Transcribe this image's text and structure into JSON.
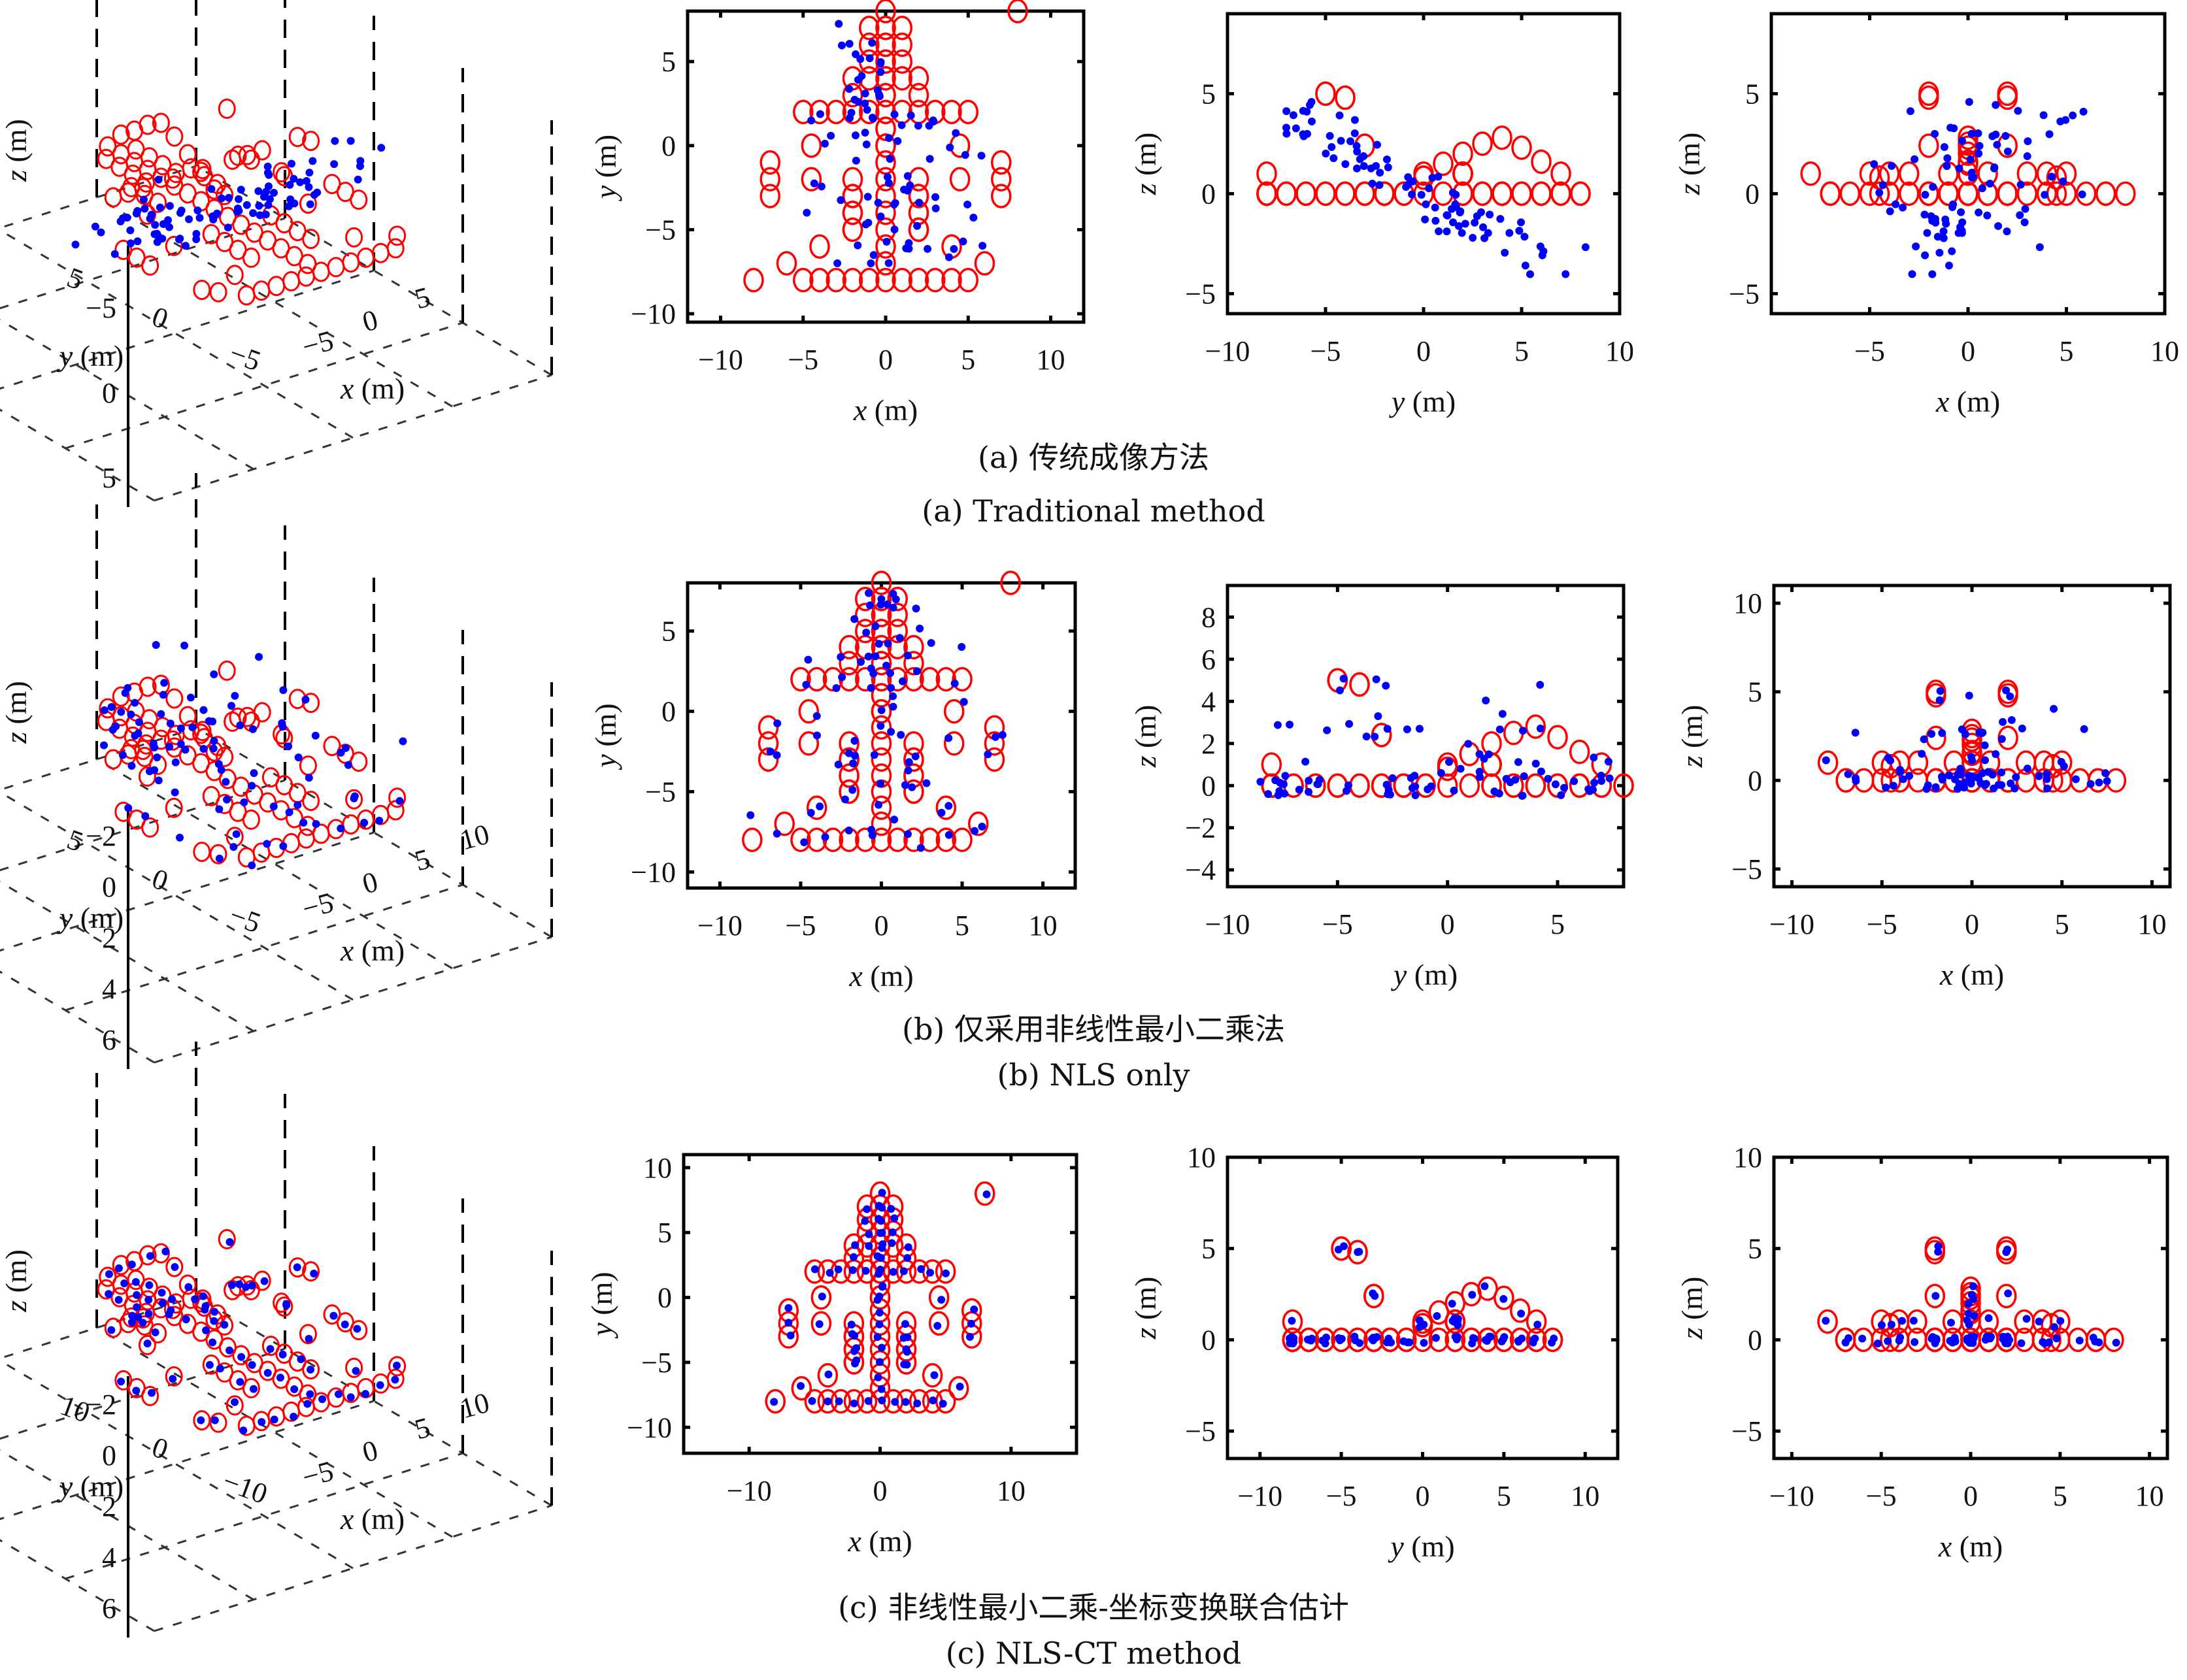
{
  "figure": {
    "markers": {
      "truth": {
        "color": "#ff0000",
        "shape": "circle-open"
      },
      "estimate": {
        "color": "#0000ff",
        "shape": "asterisk"
      }
    },
    "rows": [
      {
        "id": "a",
        "caption_cn": "(a) 传统成像方法",
        "caption_en": "(a) Traditional method"
      },
      {
        "id": "b",
        "caption_cn": "(b) 仅采用非线性最小二乘法",
        "caption_en": "(b) NLS only"
      },
      {
        "id": "c",
        "caption_cn": "(c) 非线性最小二乘-坐标变换联合估计",
        "caption_en": "(c) NLS-CT method"
      }
    ]
  },
  "chart_data": [
    {
      "id": "a-3d",
      "type": "scatter",
      "projection": "3d",
      "xlabel": "x (m)",
      "ylabel": "y (m)",
      "zlabel": "z (m)",
      "xticks": [
        "-5",
        "0",
        "5"
      ],
      "yticks": [
        "5",
        "0",
        "-5"
      ],
      "zticks": [
        "5",
        "0",
        "-5"
      ],
      "grid": true,
      "series": [
        "truth",
        "estimate"
      ],
      "estimate_style": "scattered"
    },
    {
      "id": "a-xy",
      "type": "scatter",
      "xlabel": "x (m)",
      "ylabel": "y (m)",
      "xlim": [
        -12,
        12
      ],
      "ylim": [
        -10.5,
        8
      ],
      "xticks": [
        -10,
        -5,
        0,
        5,
        10
      ],
      "yticks": [
        -10,
        -5,
        0,
        5
      ],
      "view": "xy",
      "estimate_key": "a"
    },
    {
      "id": "a-yz",
      "type": "scatter",
      "xlabel": "y (m)",
      "ylabel": "z (m)",
      "xlim": [
        -10,
        10
      ],
      "ylim": [
        -6,
        9
      ],
      "xticks": [
        -10,
        -5,
        0,
        5,
        10
      ],
      "yticks": [
        -5,
        0,
        5
      ],
      "view": "yz",
      "estimate_key": "a"
    },
    {
      "id": "a-xz",
      "type": "scatter",
      "xlabel": "x (m)",
      "ylabel": "z (m)",
      "xlim": [
        -10,
        10
      ],
      "ylim": [
        -6,
        9
      ],
      "xticks": [
        -5,
        0,
        5,
        10
      ],
      "yticks": [
        -5,
        0,
        5
      ],
      "view": "xz",
      "estimate_key": "a"
    },
    {
      "id": "b-3d",
      "type": "scatter",
      "projection": "3d",
      "xlabel": "x (m)",
      "ylabel": "y (m)",
      "zlabel": "z (m)",
      "xticks": [
        "-5",
        "0",
        "5",
        "10"
      ],
      "yticks": [
        "5",
        "0",
        "-5"
      ],
      "zticks": [
        "6",
        "4",
        "2",
        "0",
        "-2"
      ],
      "grid": true,
      "series": [
        "truth",
        "estimate"
      ],
      "estimate_style": "partially-aligned"
    },
    {
      "id": "b-xy",
      "type": "scatter",
      "xlabel": "x (m)",
      "ylabel": "y (m)",
      "xlim": [
        -12,
        12
      ],
      "ylim": [
        -11,
        8
      ],
      "xticks": [
        -10,
        -5,
        0,
        5,
        10
      ],
      "yticks": [
        -10,
        -5,
        0,
        5
      ],
      "view": "xy",
      "estimate_key": "b"
    },
    {
      "id": "b-yz",
      "type": "scatter",
      "xlabel": "y (m)",
      "ylabel": "z (m)",
      "xlim": [
        -10,
        8
      ],
      "ylim": [
        -4.8,
        9.5
      ],
      "xticks": [
        -10,
        -5,
        0,
        5
      ],
      "yticks": [
        -4,
        -2,
        0,
        2,
        4,
        6,
        8
      ],
      "view": "yz",
      "estimate_key": "b"
    },
    {
      "id": "b-xz",
      "type": "scatter",
      "xlabel": "x (m)",
      "ylabel": "z (m)",
      "xlim": [
        -11,
        11
      ],
      "ylim": [
        -6,
        11
      ],
      "xticks": [
        -10,
        -5,
        0,
        5,
        10
      ],
      "yticks": [
        -5,
        0,
        5,
        10
      ],
      "view": "xz",
      "estimate_key": "b"
    },
    {
      "id": "c-3d",
      "type": "scatter",
      "projection": "3d",
      "xlabel": "x (m)",
      "ylabel": "y (m)",
      "zlabel": "z (m)",
      "xticks": [
        "-5",
        "0",
        "5",
        "10"
      ],
      "yticks": [
        "10",
        "0",
        "-10"
      ],
      "zticks": [
        "6",
        "4",
        "2",
        "0",
        "-2"
      ],
      "grid": true,
      "series": [
        "truth",
        "estimate"
      ],
      "estimate_style": "aligned"
    },
    {
      "id": "c-xy",
      "type": "scatter",
      "xlabel": "x (m)",
      "ylabel": "y (m)",
      "xlim": [
        -15,
        15
      ],
      "ylim": [
        -12,
        11
      ],
      "xticks": [
        -10,
        0,
        10
      ],
      "yticks": [
        -10,
        -5,
        0,
        5,
        10
      ],
      "view": "xy",
      "estimate_key": "c"
    },
    {
      "id": "c-yz",
      "type": "scatter",
      "xlabel": "y (m)",
      "ylabel": "z (m)",
      "xlim": [
        -12,
        12
      ],
      "ylim": [
        -6.5,
        10
      ],
      "xticks": [
        -10,
        -5,
        0,
        5,
        10
      ],
      "yticks": [
        -5,
        0,
        5,
        10
      ],
      "view": "yz",
      "estimate_key": "c"
    },
    {
      "id": "c-xz",
      "type": "scatter",
      "xlabel": "x (m)",
      "ylabel": "z (m)",
      "xlim": [
        -11,
        11
      ],
      "ylim": [
        -6.5,
        10
      ],
      "xticks": [
        -10,
        -5,
        0,
        5,
        10
      ],
      "yticks": [
        -5,
        0,
        5,
        10
      ],
      "view": "xz",
      "estimate_key": "c"
    }
  ],
  "truth_model": {
    "description": "ship-like scatterer model (x, y, z in m)",
    "points": [
      [
        0,
        8,
        0
      ],
      [
        0,
        7,
        0
      ],
      [
        -1,
        7,
        0
      ],
      [
        1,
        7,
        0
      ],
      [
        -1,
        6,
        0
      ],
      [
        0,
        6,
        0
      ],
      [
        1,
        6,
        0
      ],
      [
        -1,
        5,
        0
      ],
      [
        0,
        5,
        0
      ],
      [
        1,
        5,
        0
      ],
      [
        -1,
        4,
        0
      ],
      [
        0,
        4,
        0
      ],
      [
        1,
        4,
        0
      ],
      [
        -2,
        4,
        0
      ],
      [
        2,
        4,
        0
      ],
      [
        -2,
        3,
        0
      ],
      [
        2,
        3,
        0
      ],
      [
        -2,
        2,
        0
      ],
      [
        2,
        2,
        0
      ],
      [
        0,
        3,
        0
      ],
      [
        0,
        2,
        0
      ],
      [
        0,
        1,
        0
      ],
      [
        0,
        0,
        0
      ],
      [
        0,
        -1,
        0
      ],
      [
        0,
        -2,
        0
      ],
      [
        0,
        -3,
        0
      ],
      [
        0,
        -4,
        0
      ],
      [
        0,
        -5,
        0
      ],
      [
        0,
        -6,
        0
      ],
      [
        -2,
        -2,
        0
      ],
      [
        -2,
        -3,
        0
      ],
      [
        -2,
        -4,
        0
      ],
      [
        -2,
        -5,
        0
      ],
      [
        2,
        -2,
        0
      ],
      [
        2,
        -3,
        0
      ],
      [
        2,
        -4,
        0
      ],
      [
        2,
        -5,
        0
      ],
      [
        -4.5,
        0,
        0.8
      ],
      [
        4.5,
        0,
        0.8
      ],
      [
        -4.5,
        -2,
        0
      ],
      [
        4.5,
        -2,
        0
      ],
      [
        -7,
        -1,
        0
      ],
      [
        -7,
        -2,
        0
      ],
      [
        -7,
        -3,
        0
      ],
      [
        7,
        -1,
        0
      ],
      [
        7,
        -2,
        0
      ],
      [
        7,
        -3,
        0
      ],
      [
        -4,
        -6,
        0
      ],
      [
        4,
        -6,
        0
      ],
      [
        -6,
        -7,
        0
      ],
      [
        6,
        -7,
        0
      ],
      [
        0,
        -7,
        0
      ],
      [
        -5,
        -8,
        0
      ],
      [
        -4,
        -8,
        0
      ],
      [
        -3,
        -8,
        0
      ],
      [
        -2,
        -8,
        0
      ],
      [
        -1,
        -8,
        0
      ],
      [
        0,
        -8,
        0
      ],
      [
        1,
        -8,
        0
      ],
      [
        2,
        -8,
        0
      ],
      [
        3,
        -8,
        0
      ],
      [
        4,
        -8,
        0
      ],
      [
        5,
        -8,
        0
      ],
      [
        -2,
        -5,
        5
      ],
      [
        -2,
        -4,
        4.8
      ],
      [
        2,
        -5,
        5
      ],
      [
        2,
        -4,
        4.8
      ],
      [
        -2,
        -3,
        2.4
      ],
      [
        2,
        -3,
        2.4
      ],
      [
        0,
        0,
        1
      ],
      [
        0,
        1,
        1.5
      ],
      [
        0,
        2,
        2
      ],
      [
        0,
        3,
        2.5
      ],
      [
        0,
        4,
        2.8
      ],
      [
        0,
        5,
        2.3
      ],
      [
        0,
        6,
        1.6
      ],
      [
        0,
        7,
        1
      ],
      [
        -5,
        2,
        1
      ],
      [
        -4,
        2,
        1
      ],
      [
        -3,
        2,
        1
      ],
      [
        -1,
        2,
        1
      ],
      [
        1,
        2,
        1
      ],
      [
        3,
        2,
        1
      ],
      [
        4,
        2,
        1
      ],
      [
        5,
        2,
        1
      ],
      [
        -8,
        -8,
        1
      ],
      [
        8,
        8,
        0
      ]
    ]
  },
  "estimates": {
    "a": {
      "note": "traditional method: rotated/misaligned estimates"
    },
    "b": {
      "note": "NLS only: partially aligned estimates"
    },
    "c": {
      "note": "NLS-CT: estimates coincide with truth"
    }
  }
}
